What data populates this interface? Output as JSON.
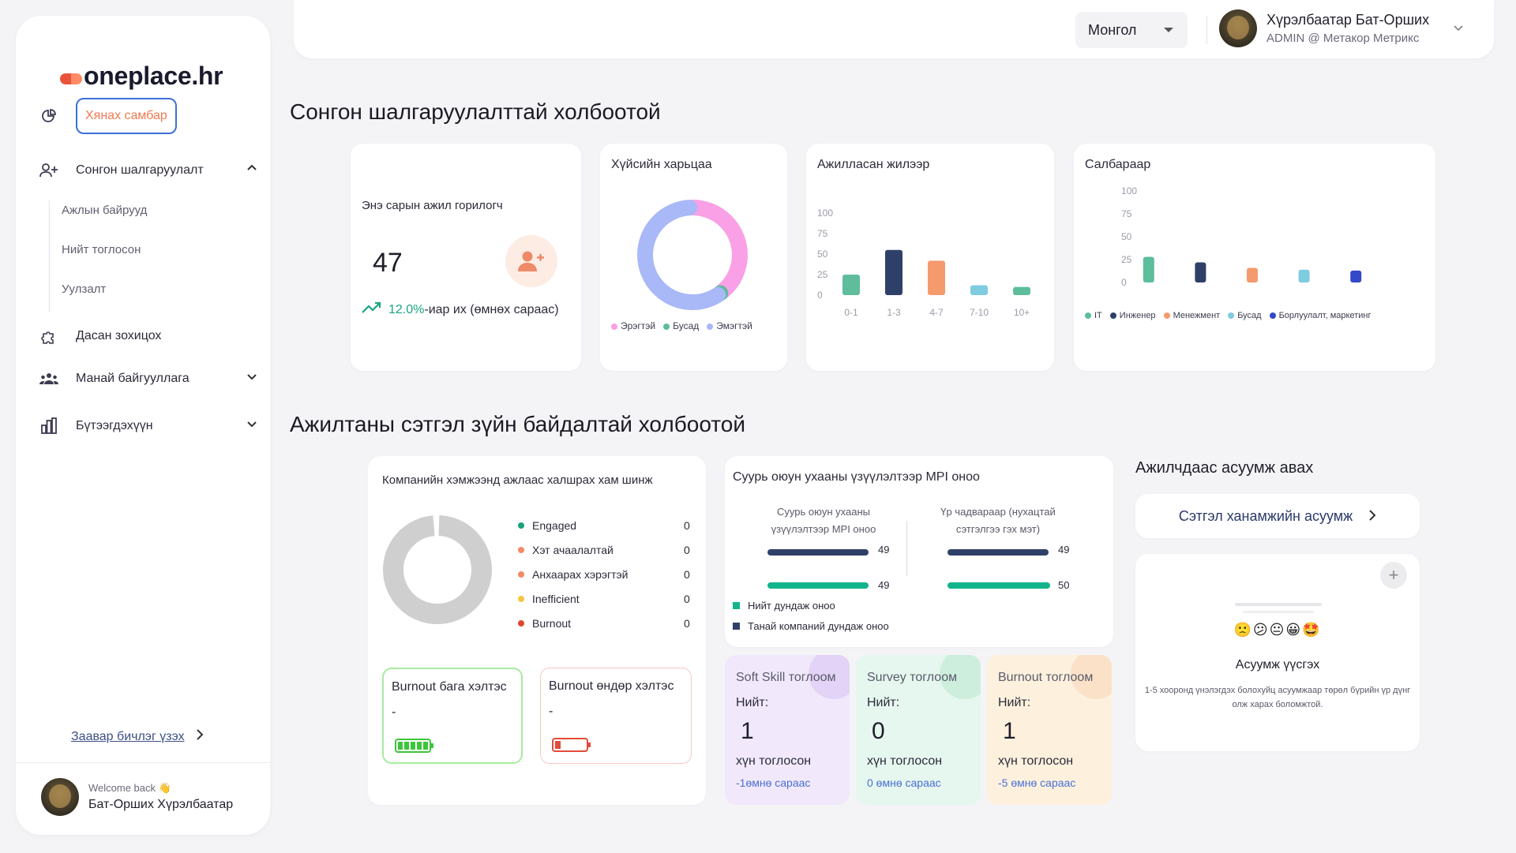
{
  "sidebar": {
    "logo": "oneplace.hr",
    "dashboard": "Хянах самбар",
    "selection": "Сонгон шалгаруулалт",
    "sub_items": [
      "Ажлын байрууд",
      "Нийт тоглосон",
      "Уулзалт"
    ],
    "adaptation": "Дасан зохицох",
    "org": "Манай байгууллага",
    "reports": "Бүтээгдэхүүн",
    "guide": "Заавар бичлэг үзэх",
    "welcome": "Welcome back 👋",
    "user_name": "Бат-Оршиx Хүрэлбаатар"
  },
  "topbar": {
    "language": "Монгол",
    "user_name": "Хүрэлбаатар Бат-Оршиx",
    "role": "ADMIN @ Метакор Метрикс"
  },
  "section1": {
    "title": "Сонгон шалгаруулалттай холбоотой"
  },
  "applicants": {
    "title": "Энэ сарын ажил горилогч",
    "count": "47",
    "change_pct": "12.0%",
    "change_text": "-иар их (өмнөх сараас)"
  },
  "gender": {
    "title": "Хүйсийн харьцаа",
    "legend": [
      "Эрэгтэй",
      "Бусад",
      "Эмэгтэй"
    ]
  },
  "years": {
    "title": "Ажилласан жилээр"
  },
  "dept": {
    "title": "Салбараар"
  },
  "section2": {
    "title": "Ажилтаны сэтгэл зүйн байдалтай холбоотой"
  },
  "mood": {
    "title": "Компанийн хэмжээнд ажлаас халшрах хам шинж",
    "rows": [
      {
        "label": "Engaged",
        "value": "0",
        "color": "#1aa37a"
      },
      {
        "label": "Хэт ачаалалтай",
        "value": "0",
        "color": "#f28b63"
      },
      {
        "label": "Анхаарах хэрэгтэй",
        "value": "0",
        "color": "#f28b63"
      },
      {
        "label": "Inefficient",
        "value": "0",
        "color": "#f5c542"
      },
      {
        "label": "Burnout",
        "value": "0",
        "color": "#e0452f"
      }
    ],
    "burn_low": "Burnout бага хэлтэс",
    "burn_low_val": "-",
    "burn_high": "Burnout өндөр хэлтэс",
    "burn_high_val": "-"
  },
  "mpi": {
    "title": "Суурь оюун ухааны үзүүлэлтээр MPI оноо",
    "col1_title": "Суурь оюун ухааны үзүүлэлтээр MPI оноо",
    "col2_title": "Үр чадвараар (нухацтай сэтгэлгээ гэх мэт)",
    "col1_vals": [
      "49",
      "49"
    ],
    "col2_vals": [
      "49",
      "50"
    ],
    "legend_total": "Нийт дундаж оноо",
    "legend_company": "Танай компаний дундаж оноо"
  },
  "stats": [
    {
      "title": "Soft Skill тоглоом",
      "label": "Нийт:",
      "value": "1",
      "unit": "хүн тоглосон",
      "change": "-1өмнө сараас",
      "bg": "#f1e9fb",
      "deco": "#e3d3f6"
    },
    {
      "title": "Survey тоглоом",
      "label": "Нийт:",
      "value": "0",
      "unit": "хүн тоглосон",
      "change": "0 өмнө сараас",
      "bg": "#e5f7ee",
      "deco": "#cdeedd"
    },
    {
      "title": "Burnout тоглоом",
      "label": "Нийт:",
      "value": "1",
      "unit": "хүн тоглосон",
      "change": "-5 өмнө сараас",
      "bg": "#fdf1de",
      "deco": "#fbe1c8"
    }
  ],
  "survey": {
    "title": "Ажилчдаас асуумж авах",
    "button": "Сэтгэл ханамжийн асуумж",
    "create_title": "Асуумж үүсгэх",
    "create_desc": "1-5 хооронд үнэлэгдэх болохуйц асуумжаар төрөл бүрийн үр дүнг олж харах боломжтой.",
    "emojis": "🙁😕😐😀🤩"
  },
  "chart_data": [
    {
      "type": "pie",
      "title": "Хүйсийн харьцаа",
      "categories": [
        "Эрэгтэй",
        "Бусад",
        "Эмэгтэй"
      ],
      "values": [
        40,
        1,
        59
      ],
      "colors": [
        "#f9a0e6",
        "#5ebd9b",
        "#a9b8f7"
      ]
    },
    {
      "type": "bar",
      "title": "Ажилласан жилээр",
      "categories": [
        "0-1",
        "1-3",
        "4-7",
        "7-10",
        "10+"
      ],
      "values": [
        25,
        55,
        42,
        12,
        10
      ],
      "colors": [
        "#5ebd9b",
        "#2f4068",
        "#f59a6d",
        "#7fcbe0",
        "#5ebd9b"
      ],
      "ylim": [
        0,
        100
      ],
      "yticks": [
        "100",
        "75",
        "50",
        "25",
        "0"
      ]
    },
    {
      "type": "bar",
      "title": "Салбараар",
      "categories": [
        "IT",
        "Инженер",
        "Менежмент",
        "Бусад",
        "Борлуулалт, маркетинг"
      ],
      "values": [
        28,
        22,
        16,
        14,
        13
      ],
      "colors": [
        "#5ebd9b",
        "#2f4068",
        "#f59a6d",
        "#7fcbe0",
        "#3548c7"
      ],
      "ylim": [
        0,
        100
      ],
      "yticks": [
        "100",
        "75",
        "50",
        "25",
        "0"
      ]
    }
  ]
}
